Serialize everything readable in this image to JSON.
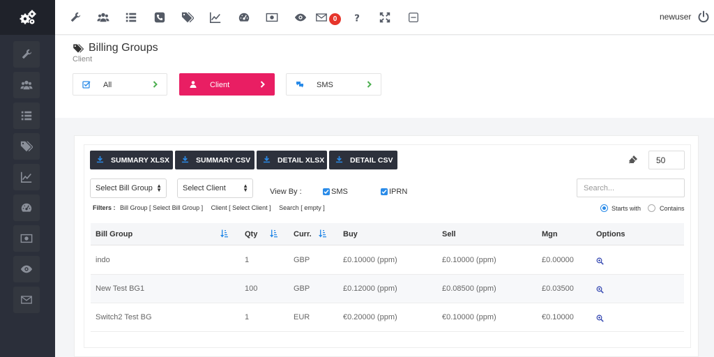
{
  "app": {
    "username": "newuser",
    "notification_count": "0"
  },
  "page": {
    "title": "Billing Groups",
    "subtitle": "Client"
  },
  "group_tabs": [
    {
      "label": "All",
      "active": false
    },
    {
      "label": "Client",
      "active": true
    },
    {
      "label": "SMS",
      "active": false
    }
  ],
  "toolbar": {
    "summary_xlsx": "SUMMARY XLSX",
    "summary_csv": "SUMMARY CSV",
    "detail_xlsx": "DETAIL XLSX",
    "detail_csv": "DETAIL CSV",
    "page_size": "50"
  },
  "filters": {
    "bill_group_select": "Select Bill Group",
    "client_select": "Select Client",
    "view_by_label": "View By :",
    "sms_label": "SMS",
    "iprn_label": "IPRN",
    "search_placeholder": "Search...",
    "summary_label": "Filters :",
    "summary_bill_group": "Bill Group [ Select Bill Group ]",
    "summary_client": "Client [ Select Client ]",
    "summary_search": "Search [ empty ]",
    "starts_with": "Starts with",
    "contains": "Contains"
  },
  "table": {
    "columns": {
      "bill_group": "Bill Group",
      "qty": "Qty",
      "curr": "Curr.",
      "buy": "Buy",
      "sell": "Sell",
      "mgn": "Mgn",
      "options": "Options"
    },
    "rows": [
      {
        "bill_group": "indo",
        "qty": "1",
        "curr": "GBP",
        "buy": "£0.10000 (ppm)",
        "sell": "£0.10000 (ppm)",
        "mgn": "£0.00000"
      },
      {
        "bill_group": "New Test BG1",
        "qty": "100",
        "curr": "GBP",
        "buy": "£0.12000 (ppm)",
        "sell": "£0.08500 (ppm)",
        "mgn": "£0.03500"
      },
      {
        "bill_group": "Switch2 Test BG",
        "qty": "1",
        "curr": "EUR",
        "buy": "€0.20000 (ppm)",
        "sell": "€0.10000 (ppm)",
        "mgn": "€0.10000"
      }
    ]
  },
  "icons": {
    "sidebar": [
      "wrench-icon",
      "users-icon",
      "list-icon",
      "tags-icon",
      "line-chart-icon",
      "dashboard-icon",
      "money-icon",
      "eye-icon",
      "envelope-icon"
    ],
    "topbar": [
      "wrench-icon",
      "users-icon",
      "list-icon",
      "phone-icon",
      "tags-icon",
      "line-chart-icon",
      "dashboard-icon",
      "money-icon",
      "eye-icon",
      "envelope-icon",
      "question-icon",
      "expand-icon",
      "minimize-icon",
      "power-icon"
    ]
  },
  "colors": {
    "accent": "#e91e63",
    "sidebar": "#2b2f3a",
    "button_dark": "#2d313c",
    "checkbox": "#2a8be8",
    "badge": "#e6352b"
  }
}
